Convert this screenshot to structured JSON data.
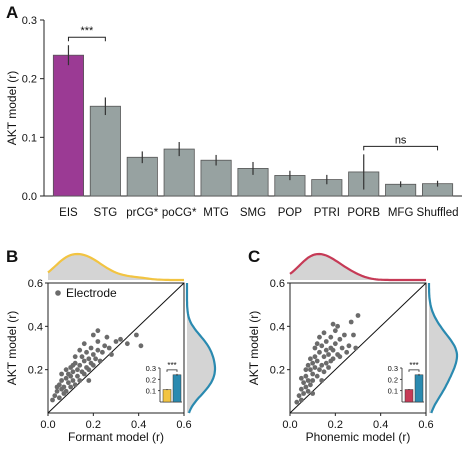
{
  "chart_data": [
    {
      "panel": "A",
      "type": "bar",
      "ylabel": "AKT model (r)",
      "ylim": [
        0,
        0.3
      ],
      "yticks": [
        "0.0",
        "0.1",
        "0.2",
        "0.3"
      ],
      "categories": [
        "EIS",
        "STG",
        "prCG*",
        "poCG*",
        "MTG",
        "SMG",
        "POP",
        "PTRI",
        "PORB",
        "MFG",
        "Shuffled"
      ],
      "values": [
        0.24,
        0.153,
        0.066,
        0.08,
        0.061,
        0.047,
        0.035,
        0.028,
        0.041,
        0.02,
        0.021
      ],
      "errors": [
        0.017,
        0.015,
        0.01,
        0.012,
        0.009,
        0.011,
        0.008,
        0.008,
        0.03,
        0.005,
        0.005
      ],
      "colors": [
        "#9b3a94",
        "#97a2a1",
        "#97a2a1",
        "#97a2a1",
        "#97a2a1",
        "#97a2a1",
        "#97a2a1",
        "#97a2a1",
        "#97a2a1",
        "#97a2a1",
        "#97a2a1"
      ],
      "annotations": [
        {
          "text": "***",
          "from": 0,
          "to": 1
        },
        {
          "text": "ns",
          "from": 8,
          "to": 10
        }
      ]
    },
    {
      "panel": "B",
      "type": "scatter",
      "xlabel": "Formant model (r)",
      "ylabel": "AKT model (r)",
      "xlim": [
        0,
        0.6
      ],
      "ylim": [
        0,
        0.6
      ],
      "xticks": [
        "0.0",
        "0.2",
        "0.4",
        "0.6"
      ],
      "yticks": [
        "0.2",
        "0.4",
        "0.6"
      ],
      "legend": "Electrode",
      "marginal_top_color": "#f2c442",
      "marginal_right_color": "#2a8ab0",
      "points": [
        [
          0.02,
          0.06
        ],
        [
          0.03,
          0.08
        ],
        [
          0.04,
          0.1
        ],
        [
          0.05,
          0.13
        ],
        [
          0.05,
          0.07
        ],
        [
          0.06,
          0.11
        ],
        [
          0.06,
          0.15
        ],
        [
          0.07,
          0.09
        ],
        [
          0.07,
          0.12
        ],
        [
          0.08,
          0.16
        ],
        [
          0.08,
          0.1
        ],
        [
          0.09,
          0.14
        ],
        [
          0.09,
          0.18
        ],
        [
          0.1,
          0.12
        ],
        [
          0.1,
          0.17
        ],
        [
          0.1,
          0.21
        ],
        [
          0.11,
          0.15
        ],
        [
          0.11,
          0.19
        ],
        [
          0.12,
          0.13
        ],
        [
          0.12,
          0.23
        ],
        [
          0.13,
          0.17
        ],
        [
          0.13,
          0.2
        ],
        [
          0.14,
          0.15
        ],
        [
          0.14,
          0.22
        ],
        [
          0.15,
          0.19
        ],
        [
          0.15,
          0.26
        ],
        [
          0.16,
          0.18
        ],
        [
          0.16,
          0.24
        ],
        [
          0.17,
          0.21
        ],
        [
          0.17,
          0.28
        ],
        [
          0.18,
          0.2
        ],
        [
          0.18,
          0.25
        ],
        [
          0.19,
          0.23
        ],
        [
          0.19,
          0.3
        ],
        [
          0.2,
          0.22
        ],
        [
          0.2,
          0.27
        ],
        [
          0.21,
          0.25
        ],
        [
          0.22,
          0.29
        ],
        [
          0.22,
          0.33
        ],
        [
          0.23,
          0.24
        ],
        [
          0.24,
          0.28
        ],
        [
          0.25,
          0.31
        ],
        [
          0.26,
          0.35
        ],
        [
          0.27,
          0.3
        ],
        [
          0.28,
          0.27
        ],
        [
          0.3,
          0.33
        ],
        [
          0.32,
          0.34
        ],
        [
          0.35,
          0.32
        ],
        [
          0.39,
          0.36
        ],
        [
          0.41,
          0.31
        ],
        [
          0.08,
          0.2
        ],
        [
          0.12,
          0.26
        ],
        [
          0.14,
          0.29
        ],
        [
          0.2,
          0.36
        ],
        [
          0.22,
          0.38
        ],
        [
          0.16,
          0.32
        ],
        [
          0.11,
          0.22
        ],
        [
          0.06,
          0.18
        ],
        [
          0.04,
          0.12
        ],
        [
          0.18,
          0.15
        ]
      ],
      "inset": {
        "values": [
          0.11,
          0.24
        ],
        "errors": [
          0.005,
          0.008
        ],
        "colors": [
          "#f2c442",
          "#2a8ab0"
        ],
        "ylim": [
          0,
          0.3
        ],
        "yticks": [
          "0.1",
          "0.2",
          "0.3"
        ],
        "annotation": "***"
      }
    },
    {
      "panel": "C",
      "type": "scatter",
      "xlabel": "Phonemic model (r)",
      "ylabel": "AKT model (r)",
      "xlim": [
        0,
        0.6
      ],
      "ylim": [
        0,
        0.6
      ],
      "xticks": [
        "0.0",
        "0.2",
        "0.4",
        "0.6"
      ],
      "yticks": [
        "0.2",
        "0.4",
        "0.6"
      ],
      "marginal_top_color": "#c63a56",
      "marginal_right_color": "#2a8ab0",
      "points": [
        [
          0.03,
          0.05
        ],
        [
          0.04,
          0.08
        ],
        [
          0.05,
          0.11
        ],
        [
          0.05,
          0.06
        ],
        [
          0.06,
          0.14
        ],
        [
          0.06,
          0.09
        ],
        [
          0.07,
          0.12
        ],
        [
          0.07,
          0.17
        ],
        [
          0.08,
          0.1
        ],
        [
          0.08,
          0.15
        ],
        [
          0.09,
          0.2
        ],
        [
          0.09,
          0.13
        ],
        [
          0.1,
          0.18
        ],
        [
          0.1,
          0.23
        ],
        [
          0.1,
          0.15
        ],
        [
          0.11,
          0.21
        ],
        [
          0.11,
          0.26
        ],
        [
          0.12,
          0.17
        ],
        [
          0.12,
          0.24
        ],
        [
          0.13,
          0.2
        ],
        [
          0.13,
          0.28
        ],
        [
          0.14,
          0.22
        ],
        [
          0.14,
          0.31
        ],
        [
          0.15,
          0.19
        ],
        [
          0.15,
          0.26
        ],
        [
          0.16,
          0.23
        ],
        [
          0.16,
          0.33
        ],
        [
          0.17,
          0.27
        ],
        [
          0.17,
          0.21
        ],
        [
          0.18,
          0.3
        ],
        [
          0.18,
          0.35
        ],
        [
          0.19,
          0.25
        ],
        [
          0.19,
          0.29
        ],
        [
          0.2,
          0.32
        ],
        [
          0.2,
          0.38
        ],
        [
          0.21,
          0.27
        ],
        [
          0.22,
          0.34
        ],
        [
          0.23,
          0.3
        ],
        [
          0.24,
          0.36
        ],
        [
          0.25,
          0.28
        ],
        [
          0.26,
          0.31
        ],
        [
          0.27,
          0.42
        ],
        [
          0.28,
          0.36
        ],
        [
          0.29,
          0.3
        ],
        [
          0.3,
          0.45
        ],
        [
          0.08,
          0.22
        ],
        [
          0.11,
          0.3
        ],
        [
          0.13,
          0.35
        ],
        [
          0.15,
          0.37
        ],
        [
          0.12,
          0.32
        ],
        [
          0.07,
          0.2
        ],
        [
          0.09,
          0.25
        ],
        [
          0.16,
          0.29
        ],
        [
          0.18,
          0.24
        ],
        [
          0.21,
          0.4
        ],
        [
          0.1,
          0.09
        ],
        [
          0.05,
          0.16
        ],
        [
          0.14,
          0.15
        ],
        [
          0.22,
          0.26
        ],
        [
          0.19,
          0.41
        ]
      ],
      "inset": {
        "values": [
          0.11,
          0.24
        ],
        "errors": [
          0.005,
          0.008
        ],
        "colors": [
          "#c63a56",
          "#2a8ab0"
        ],
        "ylim": [
          0,
          0.3
        ],
        "yticks": [
          "0.1",
          "0.2",
          "0.3"
        ],
        "annotation": "***"
      }
    }
  ],
  "panel_labels": {
    "a": "A",
    "b": "B",
    "c": "C"
  }
}
